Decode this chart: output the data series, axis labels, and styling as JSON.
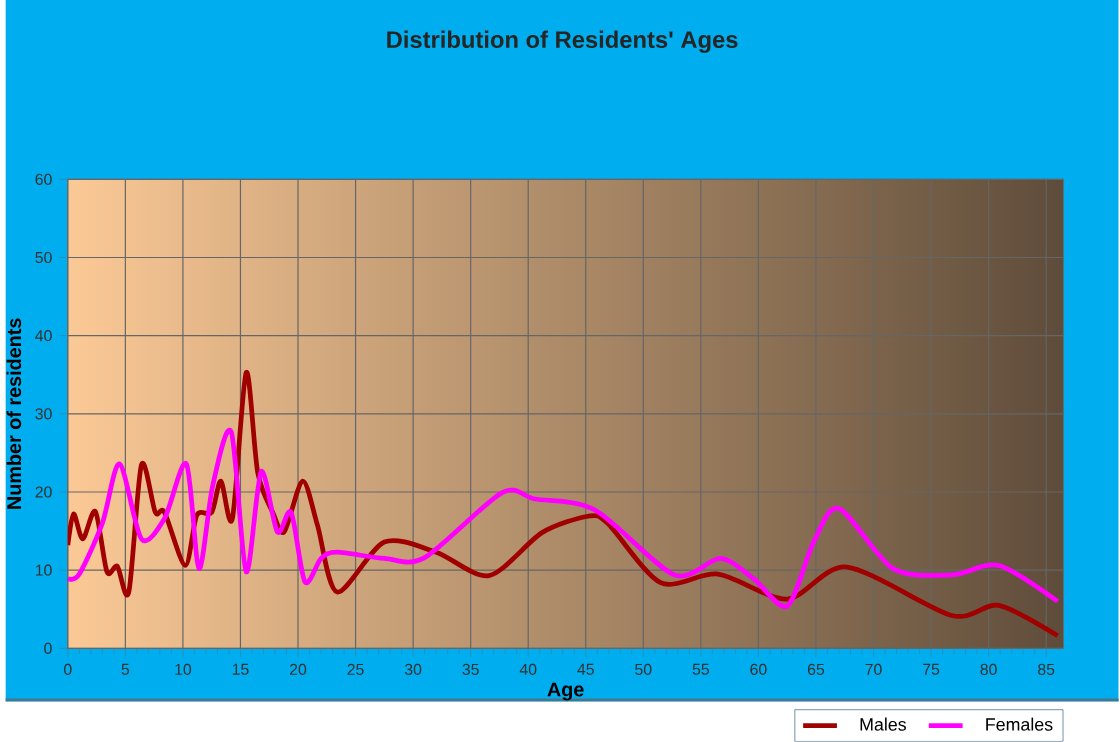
{
  "chart_data": {
    "type": "line",
    "title": "Distribution of Residents' Ages",
    "xlabel": "Age",
    "ylabel": "Number of residents",
    "xlim": [
      0,
      86.5
    ],
    "ylim": [
      0,
      60
    ],
    "xticks": [
      0,
      5,
      10,
      15,
      20,
      25,
      30,
      35,
      40,
      45,
      50,
      55,
      60,
      65,
      70,
      75,
      80,
      85
    ],
    "yticks": [
      0,
      10,
      20,
      30,
      40,
      50,
      60
    ],
    "grid": true,
    "legend": "bottom right",
    "marker": "none",
    "line_style": "solid",
    "series": [
      {
        "name": "Males",
        "color": "#a00000",
        "x": [
          0,
          0.5,
          1.3,
          2.4,
          3.4,
          4.3,
          5.3,
          6.4,
          7.6,
          8.4,
          10.2,
          11.2,
          12.5,
          13.3,
          14.3,
          15.5,
          16.5,
          17.8,
          18.8,
          20.4,
          21.7,
          23.4,
          27.5,
          32,
          36.6,
          41.2,
          45.2,
          46.9,
          51.5,
          56.5,
          62.5,
          67.7,
          76.8,
          80.9,
          86
        ],
        "values": [
          13.2,
          17.2,
          14,
          17.5,
          9.8,
          10.5,
          7.2,
          23.5,
          17.4,
          17.4,
          10.6,
          17,
          17.4,
          21.4,
          16.6,
          35.3,
          22.5,
          17.4,
          14.9,
          21.4,
          15.7,
          7.2,
          13.6,
          12.3,
          9.3,
          14.8,
          16.9,
          16,
          8.4,
          9.5,
          6.3,
          10.4,
          4.2,
          5.5,
          1.6
        ]
      },
      {
        "name": "Females",
        "color": "#ff00ff",
        "x": [
          0,
          1,
          3,
          4.5,
          6.4,
          8.4,
          10.3,
          11.4,
          12.6,
          14.2,
          15.5,
          16.8,
          18.2,
          19.4,
          20.6,
          22,
          23.4,
          27.5,
          31,
          37.7,
          40.6,
          45.8,
          52.7,
          56.7,
          59.6,
          62.5,
          64.8,
          67,
          71.7,
          76.8,
          80.9,
          86
        ],
        "values": [
          8.9,
          9.5,
          16,
          23.6,
          14,
          16.6,
          23.6,
          10.2,
          20.9,
          27.7,
          9.8,
          22.6,
          14.9,
          17.4,
          8.5,
          11.5,
          12.3,
          11.5,
          11.6,
          19.9,
          19.1,
          17.7,
          9.4,
          11.5,
          8.9,
          5.4,
          13.6,
          17.9,
          10.2,
          9.4,
          10.6,
          6
        ]
      }
    ]
  }
}
